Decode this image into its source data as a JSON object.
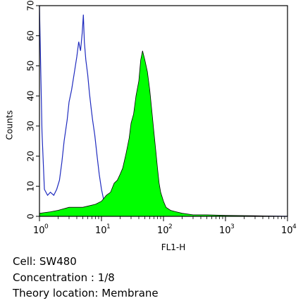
{
  "chart_data": {
    "type": "area",
    "xscale": "log",
    "xlabel": "FL1-H",
    "ylabel": "Counts",
    "xlim": [
      1,
      10000
    ],
    "ylim": [
      0,
      70
    ],
    "x_ticks": [
      {
        "base": "10",
        "exp": "0"
      },
      {
        "base": "10",
        "exp": "1"
      },
      {
        "base": "10",
        "exp": "2"
      },
      {
        "base": "10",
        "exp": "3"
      },
      {
        "base": "10",
        "exp": "4"
      }
    ],
    "y_ticks": [
      "0",
      "10",
      "20",
      "30",
      "40",
      "50",
      "60",
      "70"
    ],
    "grid": false,
    "legend": "none",
    "series": [
      {
        "style": "outline",
        "color": "#1f2bbf",
        "x": [
          1.0,
          1.1,
          1.2,
          1.35,
          1.5,
          1.7,
          1.9,
          2.1,
          2.3,
          2.5,
          2.8,
          3.0,
          3.3,
          3.6,
          4.0,
          4.3,
          4.6,
          4.9,
          5.1,
          5.3,
          5.6,
          6.0,
          6.4,
          6.8,
          7.2,
          7.8,
          8.5,
          9.2,
          10.0,
          11.0,
          12.0,
          13.5,
          15.0,
          17.0,
          20.0,
          25.0,
          30.0,
          40.0,
          60.0,
          100.0,
          200.0,
          500.0,
          1000.0,
          3000.0,
          10000.0
        ],
        "y": [
          70,
          28,
          9,
          7,
          8,
          7,
          9,
          12,
          18,
          25,
          32,
          38,
          42,
          47,
          53,
          58,
          55,
          61,
          67,
          58,
          52,
          47,
          41,
          36,
          32,
          27,
          20,
          14,
          9,
          5,
          3,
          2,
          1.5,
          1,
          0.5,
          0.5,
          0.3,
          0.3,
          0.2,
          0.2,
          0.1,
          0.1,
          0.1,
          0.1,
          0
        ]
      },
      {
        "style": "filled",
        "color": "#00ff00",
        "x": [
          1.0,
          1.5,
          2.0,
          3.0,
          5.0,
          8.0,
          10.0,
          12.0,
          14.0,
          16.0,
          18.0,
          20.0,
          22.0,
          25.0,
          28.0,
          30.0,
          33.0,
          36.0,
          40.0,
          43.0,
          46.0,
          50.0,
          55.0,
          60.0,
          65.0,
          70.0,
          75.0,
          80.0,
          85.0,
          90.0,
          100.0,
          110.0,
          130.0,
          160.0,
          200.0,
          300.0,
          500.0,
          1000.0,
          3000.0,
          10000.0
        ],
        "y": [
          1,
          1.5,
          2,
          3,
          3,
          4,
          5,
          7,
          8,
          11,
          12,
          14,
          16,
          21,
          26,
          31,
          34,
          40,
          45,
          52,
          55,
          52,
          48,
          42,
          35,
          28,
          22,
          16,
          11,
          8,
          5,
          3,
          2,
          1.5,
          1,
          0.5,
          0.5,
          0.3,
          0.2,
          0
        ]
      }
    ]
  },
  "caption": {
    "cell": "Cell: SW480",
    "concentration": "Concentration : 1/8",
    "location": "Theory location: Membrane"
  }
}
